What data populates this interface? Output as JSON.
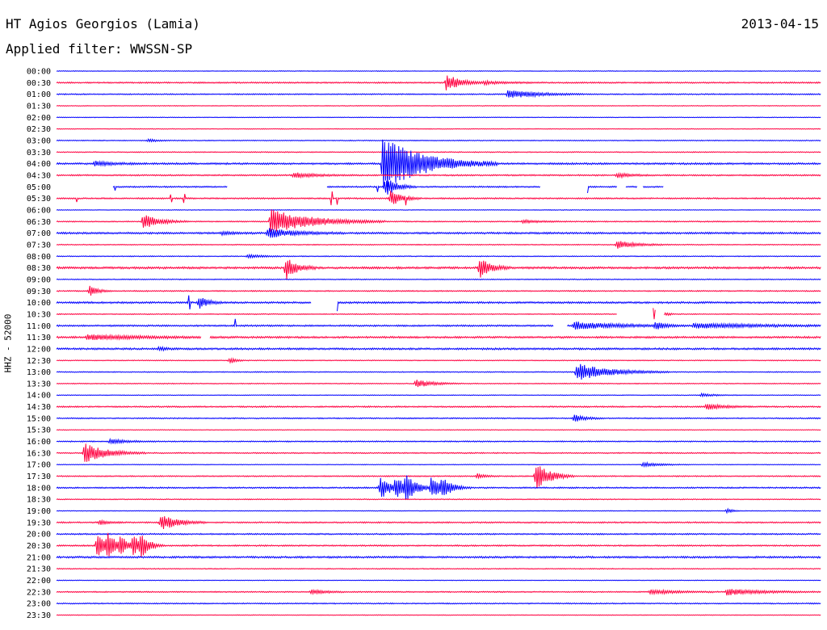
{
  "header": {
    "station": "HT Agios Georgios (Lamia)",
    "date": "2013-04-15",
    "filter": "Applied filter: WWSSN-SP"
  },
  "chart_data": {
    "type": "line",
    "title": "HT Agios Georgios (Lamia)",
    "subtitle": "Applied filter: WWSSN-SP",
    "date": "2013-04-15",
    "ylabel": "HHZ - 52000",
    "xlabel": "",
    "x_unit": "minutes past row start",
    "xlim": [
      0,
      30
    ],
    "row_labels": [
      "00:00",
      "00:30",
      "01:00",
      "01:30",
      "02:00",
      "02:30",
      "03:00",
      "03:30",
      "04:00",
      "04:30",
      "05:00",
      "05:30",
      "06:00",
      "06:30",
      "07:00",
      "07:30",
      "08:00",
      "08:30",
      "09:00",
      "09:30",
      "10:00",
      "10:30",
      "11:00",
      "11:30",
      "12:00",
      "12:30",
      "13:00",
      "13:30",
      "14:00",
      "14:30",
      "15:00",
      "15:30",
      "16:00",
      "16:30",
      "17:00",
      "17:30",
      "18:00",
      "18:30",
      "19:00",
      "19:30",
      "20:00",
      "20:30",
      "21:00",
      "21:30",
      "22:00",
      "22:30",
      "23:00",
      "23:30"
    ],
    "colors": [
      "#0000ff",
      "#ff0040"
    ],
    "noise": [
      0.3,
      0.6,
      0.5,
      0.3,
      0.3,
      0.3,
      0.4,
      0.4,
      0.8,
      0.6,
      0.6,
      0.6,
      0.3,
      0.5,
      0.8,
      0.4,
      0.4,
      0.9,
      0.4,
      0.5,
      0.8,
      0.4,
      0.7,
      0.8,
      0.8,
      0.4,
      0.4,
      0.4,
      0.3,
      0.6,
      0.5,
      0.3,
      0.5,
      0.5,
      0.3,
      0.5,
      0.6,
      0.4,
      0.3,
      0.6,
      0.6,
      0.6,
      0.8,
      0.4,
      0.3,
      0.5,
      0.5,
      0.3
    ],
    "events": [
      {
        "row": 1,
        "t": 15.3,
        "amp": 11,
        "dur": 0.5
      },
      {
        "row": 1,
        "t": 16.8,
        "amp": 2,
        "dur": 0.8
      },
      {
        "row": 2,
        "t": 17.7,
        "amp": 6,
        "dur": 1.0
      },
      {
        "row": 6,
        "t": 3.6,
        "amp": 2,
        "dur": 0.3
      },
      {
        "row": 8,
        "t": 1.5,
        "amp": 3,
        "dur": 0.6
      },
      {
        "row": 8,
        "t": 12.8,
        "amp": 34,
        "dur": 1.5
      },
      {
        "row": 9,
        "t": 9.3,
        "amp": 3,
        "dur": 0.8
      },
      {
        "row": 9,
        "t": 22.0,
        "amp": 3,
        "dur": 0.5
      },
      {
        "row": 10,
        "t": 12.9,
        "amp": 12,
        "dur": 0.4
      },
      {
        "row": 11,
        "t": 13.1,
        "amp": 10,
        "dur": 0.4
      },
      {
        "row": 13,
        "t": 3.4,
        "amp": 9,
        "dur": 0.6
      },
      {
        "row": 13,
        "t": 8.4,
        "amp": 15,
        "dur": 1.5
      },
      {
        "row": 13,
        "t": 18.3,
        "amp": 2,
        "dur": 0.6
      },
      {
        "row": 14,
        "t": 8.3,
        "amp": 6,
        "dur": 1.0
      },
      {
        "row": 14,
        "t": 6.5,
        "amp": 2,
        "dur": 0.5
      },
      {
        "row": 15,
        "t": 22.0,
        "amp": 5,
        "dur": 0.7
      },
      {
        "row": 16,
        "t": 7.5,
        "amp": 2,
        "dur": 0.6
      },
      {
        "row": 17,
        "t": 9.0,
        "amp": 14,
        "dur": 0.4
      },
      {
        "row": 17,
        "t": 16.6,
        "amp": 12,
        "dur": 0.4
      },
      {
        "row": 19,
        "t": 1.3,
        "amp": 7,
        "dur": 0.3
      },
      {
        "row": 20,
        "t": 5.6,
        "amp": 8,
        "dur": 0.3
      },
      {
        "row": 21,
        "t": 23.3,
        "amp": 10,
        "dur": 0.3
      },
      {
        "row": 22,
        "t": 20.3,
        "amp": 5,
        "dur": 1.5
      },
      {
        "row": 22,
        "t": 23.5,
        "amp": 5,
        "dur": 0.3
      },
      {
        "row": 22,
        "t": 25.0,
        "amp": 3,
        "dur": 2.5
      },
      {
        "row": 23,
        "t": 1.2,
        "amp": 3,
        "dur": 2.0
      },
      {
        "row": 24,
        "t": 4.0,
        "amp": 2,
        "dur": 0.3
      },
      {
        "row": 25,
        "t": 6.8,
        "amp": 4,
        "dur": 0.2
      },
      {
        "row": 26,
        "t": 20.4,
        "amp": 11,
        "dur": 1.2
      },
      {
        "row": 27,
        "t": 14.1,
        "amp": 5,
        "dur": 0.6
      },
      {
        "row": 28,
        "t": 25.3,
        "amp": 2,
        "dur": 0.5
      },
      {
        "row": 29,
        "t": 25.5,
        "amp": 4,
        "dur": 0.6
      },
      {
        "row": 30,
        "t": 20.3,
        "amp": 5,
        "dur": 0.4
      },
      {
        "row": 32,
        "t": 2.1,
        "amp": 3,
        "dur": 0.6
      },
      {
        "row": 33,
        "t": 1.1,
        "amp": 12,
        "dur": 0.8
      },
      {
        "row": 34,
        "t": 23.0,
        "amp": 3,
        "dur": 0.6
      },
      {
        "row": 35,
        "t": 18.8,
        "amp": 18,
        "dur": 0.5
      },
      {
        "row": 35,
        "t": 16.5,
        "amp": 3,
        "dur": 0.3
      },
      {
        "row": 36,
        "t": 12.7,
        "amp": 14,
        "dur": 0.4
      },
      {
        "row": 36,
        "t": 13.3,
        "amp": 12,
        "dur": 0.4
      },
      {
        "row": 36,
        "t": 13.7,
        "amp": 14,
        "dur": 0.4
      },
      {
        "row": 36,
        "t": 14.7,
        "amp": 13,
        "dur": 0.4
      },
      {
        "row": 36,
        "t": 15.1,
        "amp": 10,
        "dur": 0.4
      },
      {
        "row": 38,
        "t": 26.3,
        "amp": 3,
        "dur": 0.2
      },
      {
        "row": 39,
        "t": 4.1,
        "amp": 10,
        "dur": 0.6
      },
      {
        "row": 39,
        "t": 1.7,
        "amp": 3,
        "dur": 0.3
      },
      {
        "row": 41,
        "t": 1.6,
        "amp": 18,
        "dur": 0.3
      },
      {
        "row": 41,
        "t": 2.0,
        "amp": 14,
        "dur": 0.3
      },
      {
        "row": 41,
        "t": 2.5,
        "amp": 12,
        "dur": 0.3
      },
      {
        "row": 41,
        "t": 3.0,
        "amp": 12,
        "dur": 0.3
      },
      {
        "row": 41,
        "t": 3.3,
        "amp": 14,
        "dur": 0.3
      },
      {
        "row": 45,
        "t": 10.0,
        "amp": 3,
        "dur": 0.5
      },
      {
        "row": 45,
        "t": 23.3,
        "amp": 3,
        "dur": 1.0
      },
      {
        "row": 45,
        "t": 26.3,
        "amp": 4,
        "dur": 1.3
      }
    ],
    "spikes": [
      {
        "row": 10,
        "t": 2.3,
        "amp": 4
      },
      {
        "row": 10,
        "t": 12.6,
        "amp": 6
      },
      {
        "row": 10,
        "t": 20.8,
        "amp": 7
      },
      {
        "row": 11,
        "t": 0.8,
        "amp": 4
      },
      {
        "row": 11,
        "t": 4.5,
        "amp": 4
      },
      {
        "row": 11,
        "t": 5.0,
        "amp": 5
      },
      {
        "row": 11,
        "t": 10.8,
        "amp": 8
      },
      {
        "row": 11,
        "t": 11.0,
        "amp": 7
      },
      {
        "row": 11,
        "t": 13.7,
        "amp": 6
      },
      {
        "row": 20,
        "t": 5.2,
        "amp": 8
      },
      {
        "row": 20,
        "t": 11.0,
        "amp": 10
      },
      {
        "row": 21,
        "t": 23.3,
        "amp": 8
      },
      {
        "row": 21,
        "t": 23.8,
        "amp": 6
      },
      {
        "row": 22,
        "t": 7.0,
        "amp": 8
      },
      {
        "row": 23,
        "t": 5.7,
        "amp": 4
      }
    ],
    "gaps": [
      {
        "row": 10,
        "from": 0.0,
        "to": 2.2
      },
      {
        "row": 10,
        "from": 6.7,
        "to": 10.6
      },
      {
        "row": 10,
        "from": 19.0,
        "to": 20.8
      },
      {
        "row": 10,
        "from": 22.0,
        "to": 22.3
      },
      {
        "row": 10,
        "from": 22.8,
        "to": 23.0
      },
      {
        "row": 10,
        "from": 23.8,
        "to": 30.0
      },
      {
        "row": 20,
        "from": 10.0,
        "to": 11.0
      },
      {
        "row": 21,
        "from": 22.0,
        "to": 23.4
      },
      {
        "row": 21,
        "from": 23.5,
        "to": 23.8
      },
      {
        "row": 22,
        "from": 19.5,
        "to": 20.0
      },
      {
        "row": 23,
        "from": 5.7,
        "to": 6.0
      }
    ]
  }
}
